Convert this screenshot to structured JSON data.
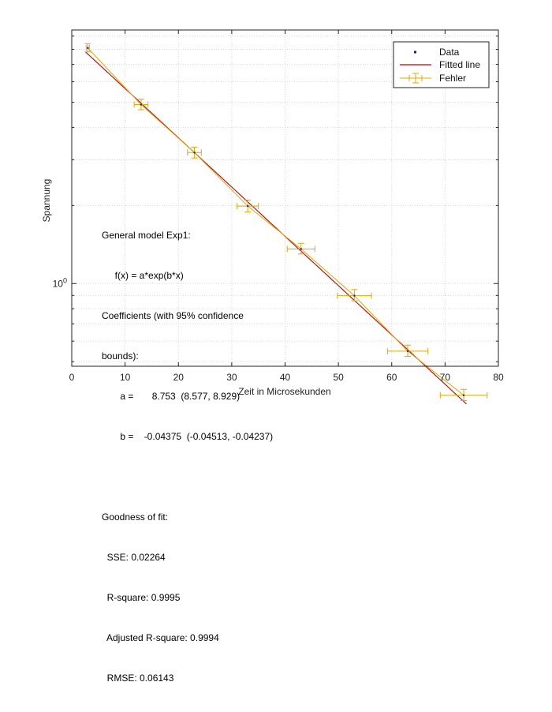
{
  "chart_data": {
    "type": "scatter",
    "scale": {
      "x": "linear",
      "y": "log"
    },
    "xlim": [
      0,
      80
    ],
    "ylim": [
      0.48,
      9.5
    ],
    "x_ticks": [
      0,
      10,
      20,
      30,
      40,
      50,
      60,
      70,
      80
    ],
    "y_ticks": [
      {
        "value": 1,
        "base": "10",
        "exp": "0"
      }
    ],
    "xlabel": "Zeit in Microsekunden",
    "ylabel": "Spannung",
    "grid": "on (dotted, log minor lines)",
    "legend": {
      "placement": "top-right",
      "entries": [
        "Data",
        "Fitted line",
        "Fehler"
      ]
    },
    "colors": {
      "data": "#1212cc",
      "fit": "#c00000",
      "error": "#e0a800",
      "grid": "#d6d6d6",
      "axis": "#222222"
    },
    "series": [
      {
        "name": "Data",
        "kind": "points",
        "x": [
          3,
          13,
          23,
          33,
          43,
          53,
          63,
          73.5
        ],
        "y": [
          8.1,
          4.9,
          3.2,
          1.99,
          1.36,
          0.898,
          0.549,
          0.371
        ]
      },
      {
        "name": "Fitted line",
        "kind": "model",
        "model": "a*exp(b*x)",
        "a": 8.753,
        "b": -0.04375,
        "x_range": [
          2.6,
          74
        ]
      },
      {
        "name": "Fehler",
        "kind": "errorbar",
        "x": [
          3,
          13,
          23,
          33,
          43,
          53,
          63,
          73.5
        ],
        "y": [
          8.1,
          4.9,
          3.2,
          1.99,
          1.36,
          0.898,
          0.549,
          0.371
        ],
        "xerr": [
          0.3,
          1.3,
          1.3,
          2,
          2.6,
          3.2,
          3.8,
          4.4
        ],
        "yerr_low": [
          0.28,
          0.22,
          0.15,
          0.1,
          0.06,
          0.04,
          0.025,
          0.017
        ],
        "yerr_high": [
          0.3,
          0.24,
          0.16,
          0.11,
          0.07,
          0.05,
          0.03,
          0.02
        ]
      }
    ],
    "annotation": [
      "General model Exp1:",
      "     f(x) = a*exp(b*x)",
      "Coefficients (with 95% confidence",
      "bounds):",
      "       a =       8.753  (8.577, 8.929)",
      "       b =    -0.04375  (-0.04513, -0.04237)",
      "",
      "Goodness of fit:",
      "  SSE: 0.02264",
      "  R-square: 0.9995",
      "  Adjusted R-square: 0.9994",
      "  RMSE: 0.06143"
    ]
  }
}
